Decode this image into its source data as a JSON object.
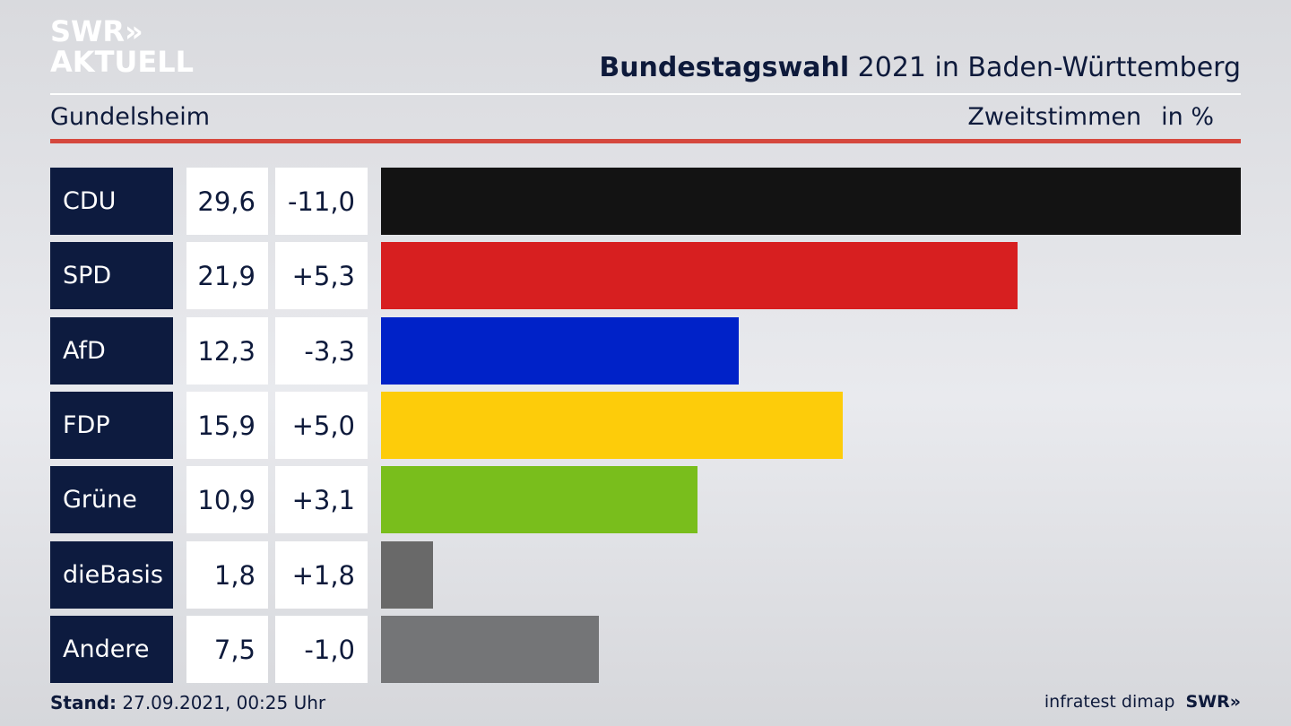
{
  "header": {
    "logo_line1": "SWR»",
    "logo_line2": "AKTUELL",
    "title_bold": "Bundestagswahl",
    "title_rest": " 2021 in Baden-Württemberg",
    "location": "Gundelsheim",
    "metric": "Zweitstimmen",
    "unit": "in %"
  },
  "chart_data": {
    "type": "bar",
    "orientation": "horizontal",
    "categories": [
      "CDU",
      "SPD",
      "AfD",
      "FDP",
      "Grüne",
      "dieBasis",
      "Andere"
    ],
    "value_labels": [
      "29,6",
      "21,9",
      "12,3",
      "15,9",
      "10,9",
      "1,8",
      "7,5"
    ],
    "diff_labels": [
      "-11,0",
      "+5,3",
      "-3,3",
      "+5,0",
      "+3,1",
      "+1,8",
      "-1,0"
    ],
    "values": [
      29.6,
      21.9,
      12.3,
      15.9,
      10.9,
      1.8,
      7.5
    ],
    "diffs": [
      -11.0,
      5.3,
      -3.3,
      5.0,
      3.1,
      1.8,
      -1.0
    ],
    "colors": [
      "#131313",
      "#d71f20",
      "#0022c8",
      "#fdcc0a",
      "#79be1c",
      "#696969",
      "#747577"
    ],
    "xlim": [
      0,
      29.6
    ]
  },
  "footer": {
    "stand_label": "Stand:",
    "stand_value": " 27.09.2021, 00:25 Uhr",
    "source": "infratest dimap",
    "brand": "SWR»"
  }
}
